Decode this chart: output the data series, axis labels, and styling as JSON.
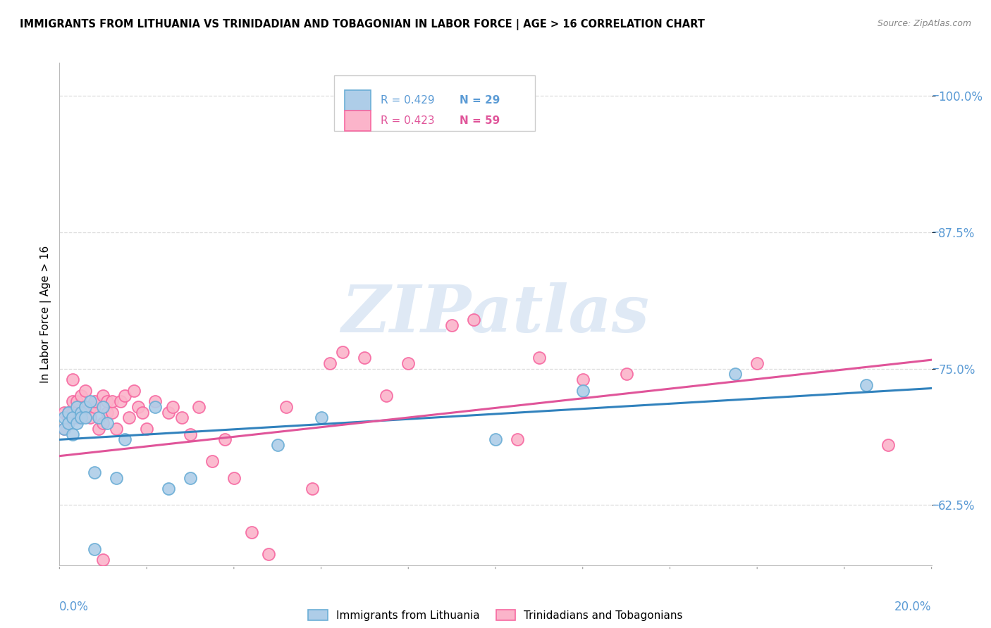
{
  "title": "IMMIGRANTS FROM LITHUANIA VS TRINIDADIAN AND TOBAGONIAN IN LABOR FORCE | AGE > 16 CORRELATION CHART",
  "source": "Source: ZipAtlas.com",
  "ylabel": "In Labor Force | Age > 16",
  "xmin": 0.0,
  "xmax": 0.2,
  "ymin": 57.0,
  "ymax": 103.0,
  "blue_color": "#6baed6",
  "blue_color_fill": "#aecde8",
  "pink_color": "#f768a1",
  "pink_color_fill": "#fbb4ca",
  "blue_line_color": "#3182bd",
  "pink_line_color": "#e0559a",
  "legend_R_blue": "R = 0.429",
  "legend_N_blue": "N = 29",
  "legend_R_pink": "R = 0.423",
  "legend_N_pink": "N = 59",
  "legend_label_blue": "Immigrants from Lithuania",
  "legend_label_pink": "Trinidadians and Tobagonians",
  "blue_x": [
    0.001,
    0.001,
    0.002,
    0.002,
    0.003,
    0.003,
    0.004,
    0.004,
    0.005,
    0.005,
    0.006,
    0.006,
    0.007,
    0.008,
    0.009,
    0.01,
    0.011,
    0.013,
    0.015,
    0.022,
    0.025,
    0.03,
    0.05,
    0.06,
    0.1,
    0.12,
    0.155,
    0.185,
    0.008
  ],
  "blue_y": [
    69.5,
    70.5,
    71.0,
    70.0,
    70.5,
    69.0,
    71.5,
    70.0,
    71.0,
    70.5,
    71.5,
    70.5,
    72.0,
    65.5,
    70.5,
    71.5,
    70.0,
    65.0,
    68.5,
    71.5,
    64.0,
    65.0,
    68.0,
    70.5,
    68.5,
    73.0,
    74.5,
    73.5,
    58.5
  ],
  "pink_x": [
    0.001,
    0.001,
    0.002,
    0.002,
    0.003,
    0.003,
    0.003,
    0.004,
    0.004,
    0.005,
    0.005,
    0.006,
    0.006,
    0.007,
    0.007,
    0.008,
    0.008,
    0.009,
    0.01,
    0.01,
    0.011,
    0.011,
    0.012,
    0.012,
    0.013,
    0.014,
    0.015,
    0.016,
    0.017,
    0.018,
    0.019,
    0.02,
    0.022,
    0.025,
    0.026,
    0.028,
    0.03,
    0.032,
    0.035,
    0.038,
    0.04,
    0.044,
    0.048,
    0.052,
    0.058,
    0.062,
    0.065,
    0.07,
    0.075,
    0.08,
    0.09,
    0.095,
    0.105,
    0.11,
    0.12,
    0.13,
    0.16,
    0.19,
    0.01
  ],
  "pink_y": [
    69.5,
    71.0,
    71.0,
    70.5,
    74.0,
    71.0,
    72.0,
    70.5,
    72.0,
    72.5,
    71.0,
    71.5,
    73.0,
    71.5,
    70.5,
    71.5,
    72.0,
    69.5,
    72.5,
    70.0,
    71.0,
    72.0,
    71.0,
    72.0,
    69.5,
    72.0,
    72.5,
    70.5,
    73.0,
    71.5,
    71.0,
    69.5,
    72.0,
    71.0,
    71.5,
    70.5,
    69.0,
    71.5,
    66.5,
    68.5,
    65.0,
    60.0,
    58.0,
    71.5,
    64.0,
    75.5,
    76.5,
    76.0,
    72.5,
    75.5,
    79.0,
    79.5,
    68.5,
    76.0,
    74.0,
    74.5,
    75.5,
    68.0,
    57.5
  ],
  "blue_trend_x0": 0.0,
  "blue_trend_x1": 0.2,
  "blue_trend_y0": 68.5,
  "blue_trend_y1": 73.2,
  "pink_trend_y0": 67.0,
  "pink_trend_y1": 75.8,
  "watermark_text": "ZIPatlas",
  "ytick_positions": [
    62.5,
    75.0,
    87.5,
    100.0
  ],
  "ytick_labels": [
    "62.5%",
    "75.0%",
    "87.5%",
    "100.0%"
  ],
  "grid_color": "#dddddd",
  "background_color": "#ffffff",
  "tick_color": "#5b9bd5"
}
